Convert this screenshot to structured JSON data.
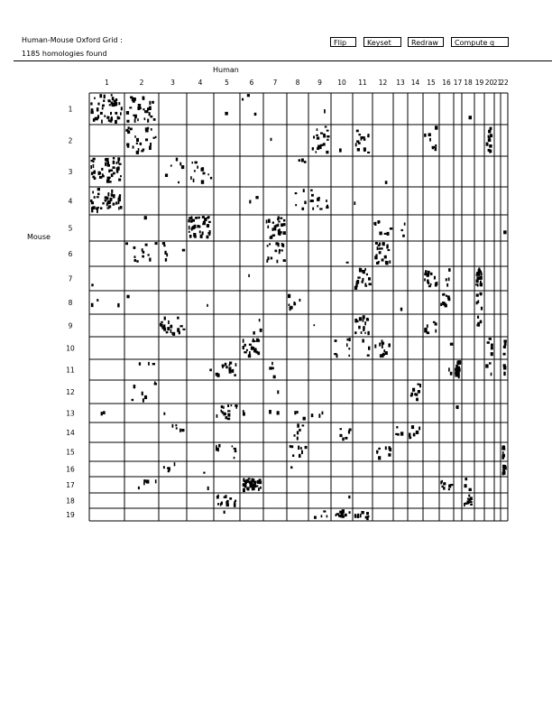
{
  "header": {
    "title": "Human-Mouse Oxford Grid :",
    "subtitle": "1185 homologies found"
  },
  "toolbar": {
    "flip_label": "Flip",
    "keyset_label": "Keyset",
    "redraw_label": "Redraw",
    "compute_label": "Compute q"
  },
  "chart_data": {
    "type": "heatmap",
    "xlabel": "Human",
    "ylabel": "Mouse",
    "x_categories": [
      "1",
      "2",
      "3",
      "4",
      "5",
      "6",
      "7",
      "8",
      "9",
      "10",
      "11",
      "12",
      "13",
      "14",
      "15",
      "16",
      "17",
      "18",
      "19",
      "20",
      "21",
      "22"
    ],
    "y_categories": [
      "1",
      "2",
      "3",
      "4",
      "5",
      "6",
      "7",
      "8",
      "9",
      "10",
      "11",
      "12",
      "13",
      "14",
      "15",
      "16",
      "17",
      "18",
      "19"
    ],
    "grid": true,
    "mark_color": "#000000",
    "cells_note_fields": [
      "mouse",
      "human",
      "approx_homologies"
    ],
    "cells": [
      [
        1,
        1,
        45
      ],
      [
        1,
        2,
        30
      ],
      [
        1,
        5,
        1
      ],
      [
        1,
        6,
        3
      ],
      [
        1,
        9,
        1
      ],
      [
        1,
        18,
        1
      ],
      [
        2,
        2,
        25
      ],
      [
        2,
        7,
        1
      ],
      [
        2,
        9,
        20
      ],
      [
        2,
        10,
        1
      ],
      [
        2,
        11,
        15
      ],
      [
        2,
        15,
        8
      ],
      [
        2,
        20,
        12
      ],
      [
        3,
        1,
        45
      ],
      [
        3,
        3,
        6
      ],
      [
        3,
        4,
        12
      ],
      [
        3,
        8,
        3
      ],
      [
        3,
        12,
        1
      ],
      [
        4,
        1,
        40
      ],
      [
        4,
        6,
        2
      ],
      [
        4,
        8,
        5
      ],
      [
        4,
        9,
        12
      ],
      [
        4,
        11,
        1
      ],
      [
        5,
        2,
        1
      ],
      [
        5,
        4,
        35
      ],
      [
        5,
        7,
        25
      ],
      [
        5,
        12,
        8
      ],
      [
        5,
        13,
        3
      ],
      [
        5,
        22,
        1
      ],
      [
        6,
        2,
        12
      ],
      [
        6,
        3,
        6
      ],
      [
        6,
        7,
        15
      ],
      [
        6,
        10,
        1
      ],
      [
        6,
        12,
        20
      ],
      [
        7,
        1,
        1
      ],
      [
        7,
        6,
        1
      ],
      [
        7,
        11,
        20
      ],
      [
        7,
        15,
        15
      ],
      [
        7,
        16,
        4
      ],
      [
        7,
        19,
        20
      ],
      [
        8,
        1,
        3
      ],
      [
        8,
        2,
        1
      ],
      [
        8,
        4,
        1
      ],
      [
        8,
        8,
        8
      ],
      [
        8,
        13,
        1
      ],
      [
        8,
        16,
        10
      ],
      [
        8,
        19,
        6
      ],
      [
        9,
        3,
        20
      ],
      [
        9,
        6,
        3
      ],
      [
        9,
        9,
        1
      ],
      [
        9,
        11,
        15
      ],
      [
        9,
        15,
        8
      ],
      [
        9,
        19,
        5
      ],
      [
        10,
        6,
        20
      ],
      [
        10,
        10,
        8
      ],
      [
        10,
        11,
        3
      ],
      [
        10,
        12,
        15
      ],
      [
        10,
        16,
        1
      ],
      [
        10,
        20,
        5
      ],
      [
        10,
        22,
        5
      ],
      [
        11,
        2,
        3
      ],
      [
        11,
        4,
        1
      ],
      [
        11,
        5,
        15
      ],
      [
        11,
        7,
        4
      ],
      [
        11,
        16,
        2
      ],
      [
        11,
        17,
        35
      ],
      [
        11,
        20,
        3
      ],
      [
        11,
        22,
        3
      ],
      [
        12,
        2,
        8
      ],
      [
        12,
        7,
        1
      ],
      [
        12,
        14,
        10
      ],
      [
        13,
        1,
        2
      ],
      [
        13,
        3,
        1
      ],
      [
        13,
        5,
        15
      ],
      [
        13,
        6,
        2
      ],
      [
        13,
        7,
        2
      ],
      [
        13,
        8,
        3
      ],
      [
        13,
        9,
        3
      ],
      [
        13,
        17,
        2
      ],
      [
        14,
        3,
        5
      ],
      [
        14,
        8,
        6
      ],
      [
        14,
        10,
        6
      ],
      [
        14,
        13,
        4
      ],
      [
        14,
        14,
        8
      ],
      [
        15,
        5,
        8
      ],
      [
        15,
        8,
        8
      ],
      [
        15,
        12,
        8
      ],
      [
        15,
        22,
        10
      ],
      [
        16,
        3,
        5
      ],
      [
        16,
        4,
        1
      ],
      [
        16,
        8,
        1
      ],
      [
        16,
        22,
        8
      ],
      [
        17,
        2,
        5
      ],
      [
        17,
        4,
        1
      ],
      [
        17,
        6,
        40
      ],
      [
        17,
        16,
        8
      ],
      [
        17,
        18,
        3
      ],
      [
        18,
        5,
        15
      ],
      [
        18,
        10,
        1
      ],
      [
        18,
        18,
        10
      ],
      [
        19,
        5,
        1
      ],
      [
        19,
        9,
        4
      ],
      [
        19,
        10,
        12
      ],
      [
        19,
        11,
        10
      ]
    ]
  }
}
